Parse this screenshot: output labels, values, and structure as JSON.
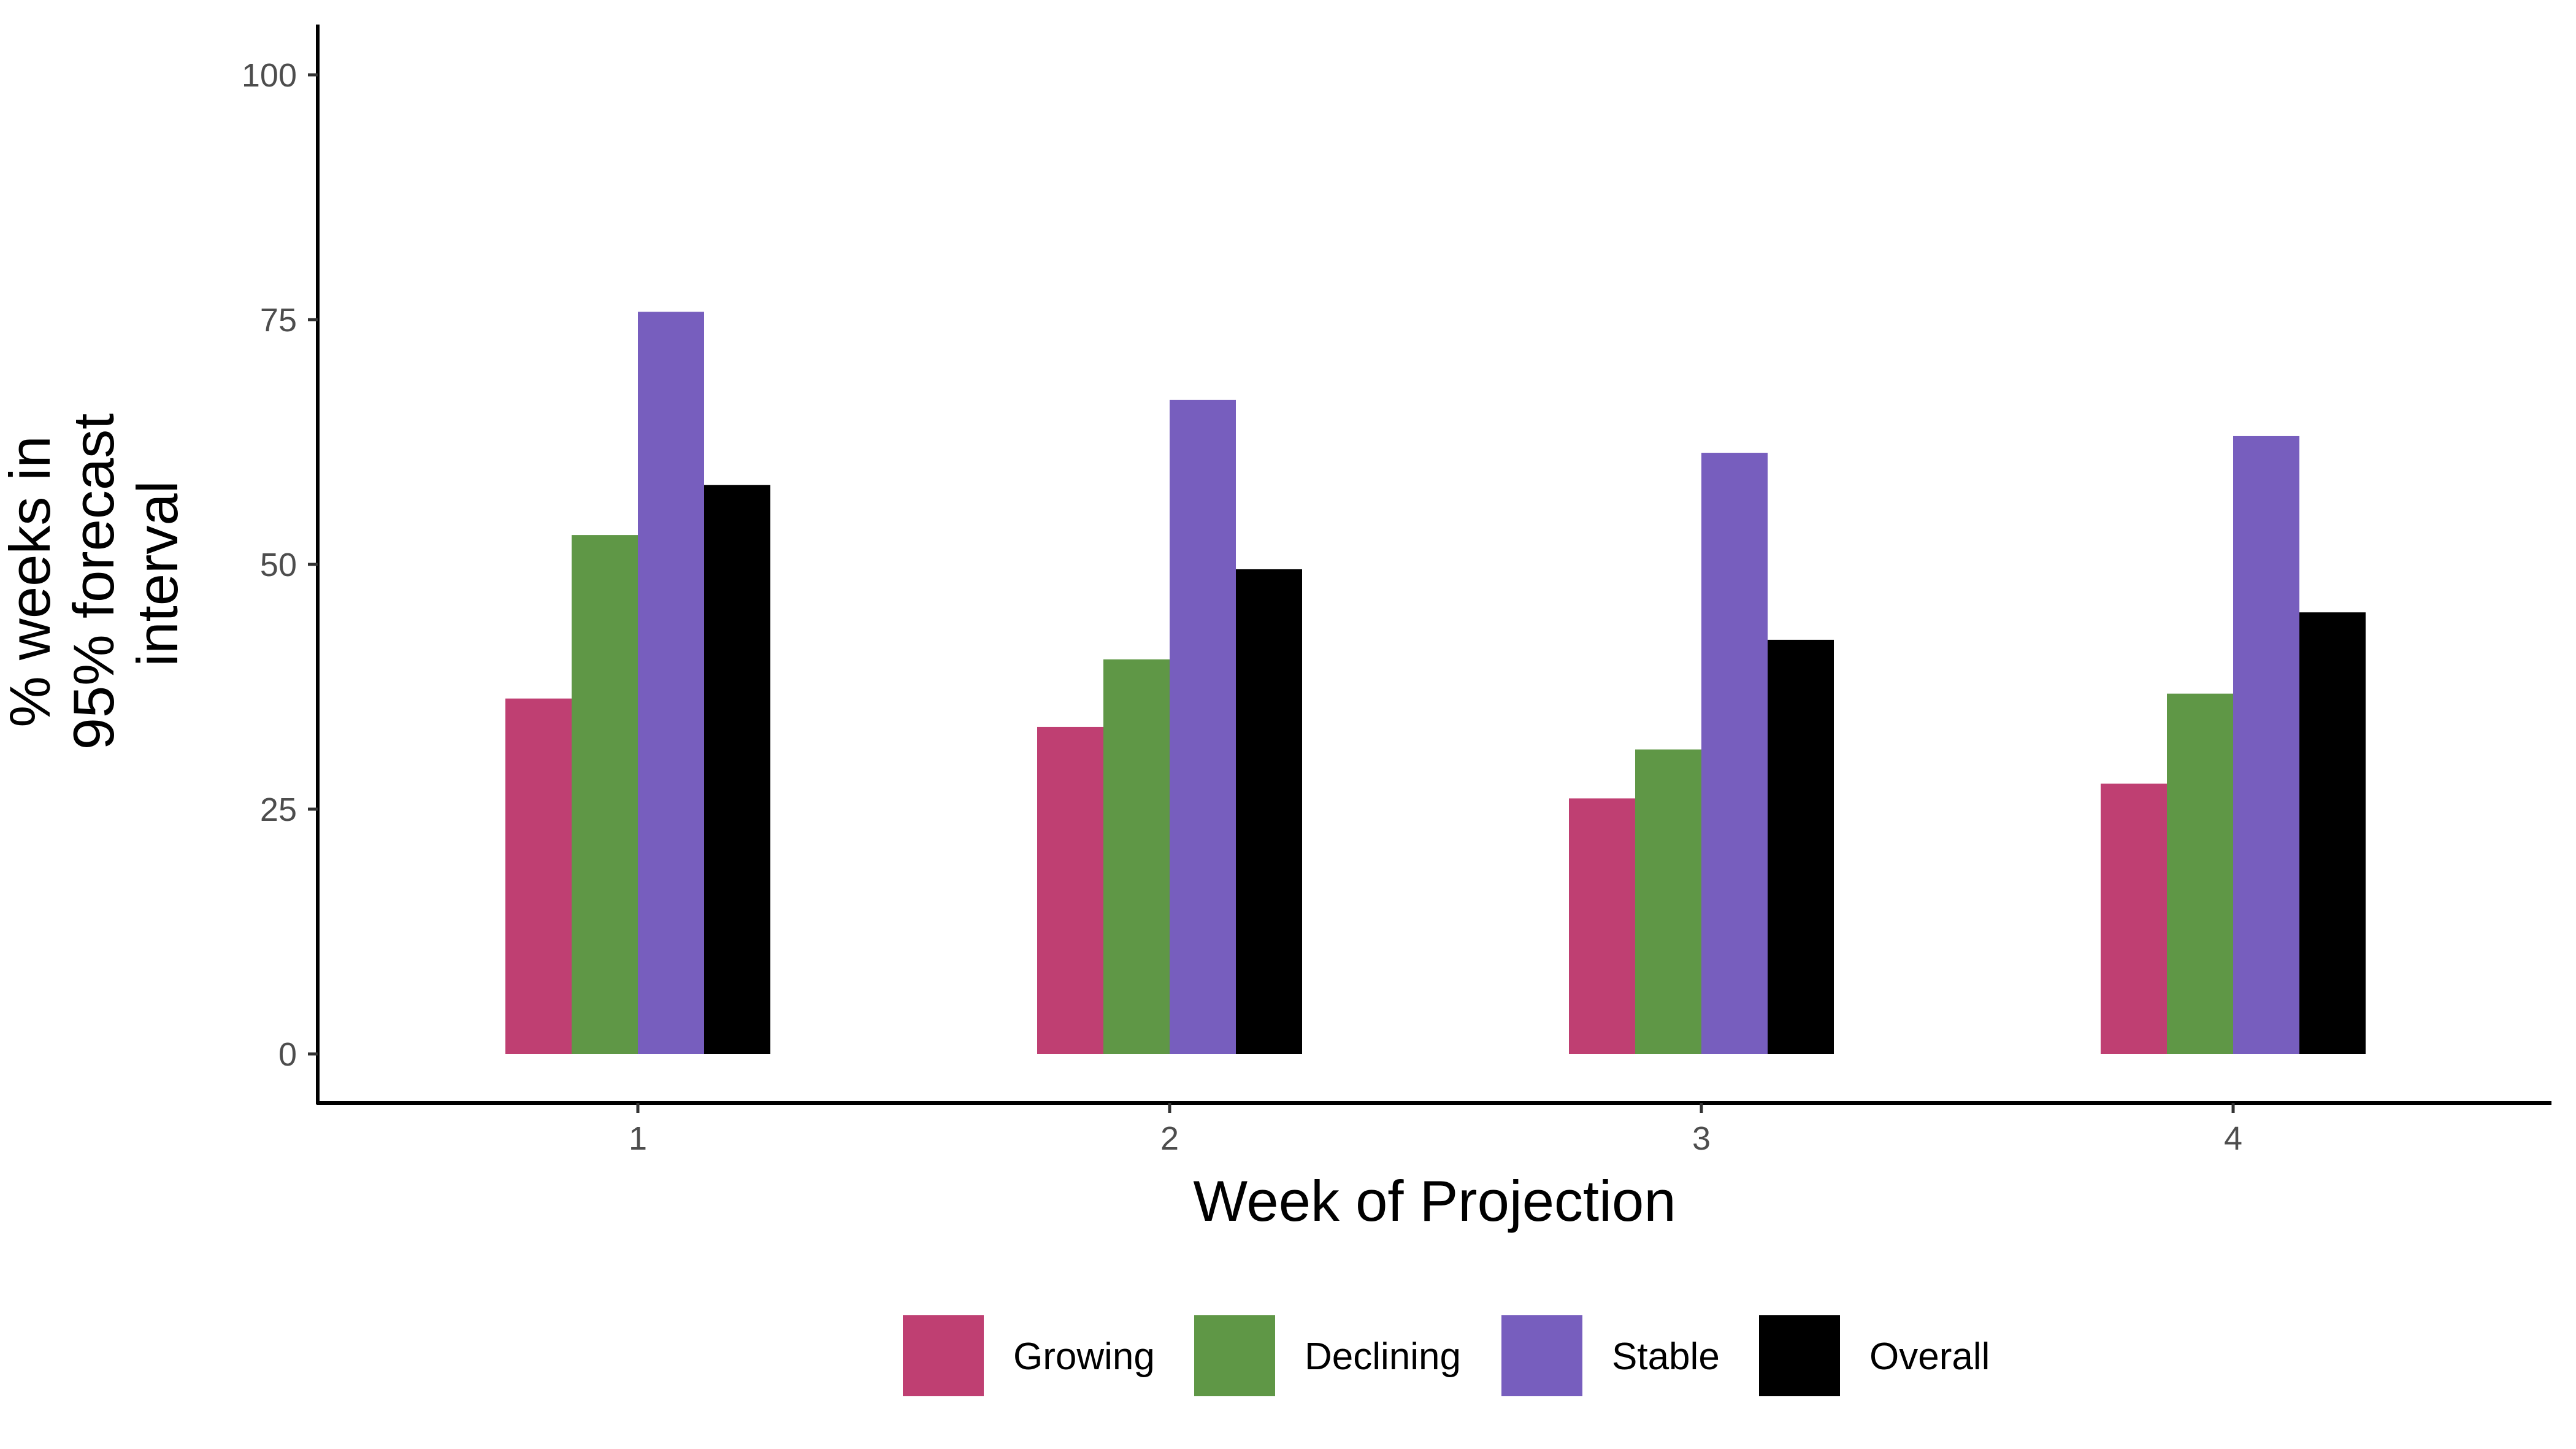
{
  "chart_data": {
    "type": "bar",
    "title": "",
    "xlabel": "Week of Projection",
    "ylabel_lines": [
      "% weeks in",
      "95% forecast",
      "interval"
    ],
    "categories": [
      "1",
      "2",
      "3",
      "4"
    ],
    "ylim": [
      0,
      100
    ],
    "yticks": [
      "0",
      "25",
      "50",
      "75",
      "100"
    ],
    "grid": false,
    "legend_position": "bottom",
    "series": [
      {
        "name": "Growing",
        "color": "#bf3f72",
        "values": [
          36.3,
          33.4,
          26.1,
          27.6
        ]
      },
      {
        "name": "Declining",
        "color": "#5f9746",
        "values": [
          53.0,
          40.3,
          31.1,
          36.8
        ]
      },
      {
        "name": "Stable",
        "color": "#775ebe",
        "values": [
          75.8,
          66.8,
          61.4,
          63.1
        ]
      },
      {
        "name": "Overall",
        "color": "#000000",
        "values": [
          58.1,
          49.5,
          42.3,
          45.1
        ]
      }
    ]
  }
}
